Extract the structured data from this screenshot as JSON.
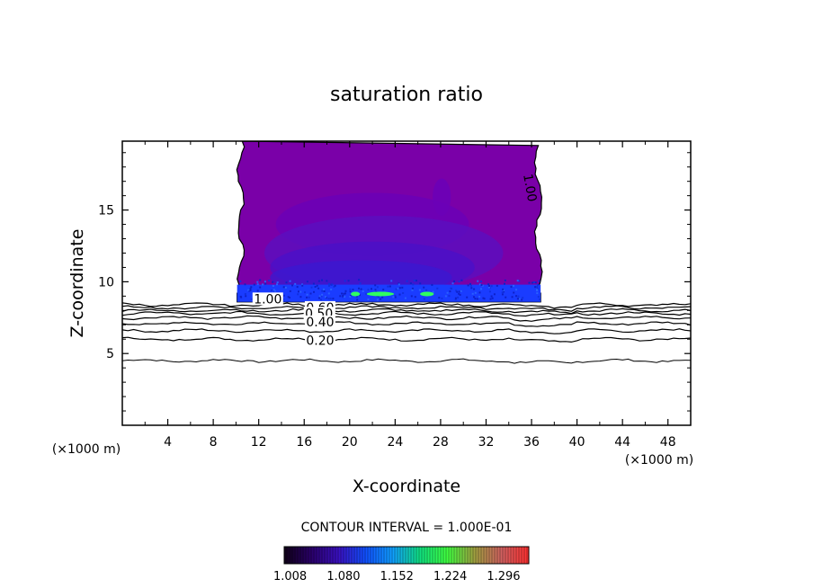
{
  "chart_data": {
    "type": "contour",
    "title": "saturation ratio",
    "xlabel": "X-coordinate",
    "ylabel": "Z-coordinate",
    "x_unit_left": "(×1000 m)",
    "x_unit_right": "(×1000 m)",
    "xlim": [
      0,
      50
    ],
    "ylim": [
      0,
      19.8
    ],
    "x_ticks": [
      4,
      8,
      12,
      16,
      20,
      24,
      28,
      32,
      36,
      40,
      44,
      48
    ],
    "y_ticks": [
      5,
      10,
      15
    ],
    "x_tick_labels": [
      "4",
      "8",
      "12",
      "16",
      "20",
      "24",
      "28",
      "32",
      "36",
      "40",
      "44",
      "48"
    ],
    "y_tick_labels": [
      "5",
      "10",
      "15"
    ],
    "contour_interval_text": "CONTOUR INTERVAL = 1.000E-01",
    "contour_labels": [
      "1.00",
      "1.00",
      "0.60",
      "0.50",
      "0.40",
      "0.20"
    ],
    "contour_levels": [
      0.1,
      0.2,
      0.3,
      0.4,
      0.5,
      0.6,
      0.7,
      0.8,
      0.9
    ],
    "contour_line_heights": [
      4.5,
      6.0,
      6.6,
      7.1,
      7.5,
      7.8,
      8.0,
      8.2,
      8.4
    ],
    "supersaturated_region": {
      "x_range": [
        10.3,
        36.8
      ],
      "z_range": [
        8.6,
        19.8
      ],
      "fill_color": "#7a00a8"
    },
    "colorbar": {
      "tick_labels": [
        "1.008",
        "1.080",
        "1.152",
        "1.224",
        "1.296"
      ],
      "tick_values": [
        1.008,
        1.08,
        1.152,
        1.224,
        1.296
      ],
      "range": [
        1.0,
        1.33
      ],
      "colors": [
        "#100018",
        "#2a006a",
        "#3a10c0",
        "#1050ff",
        "#10a0ff",
        "#10e080",
        "#40ff40",
        "#a0a040",
        "#d06060",
        "#ff3030"
      ]
    }
  }
}
